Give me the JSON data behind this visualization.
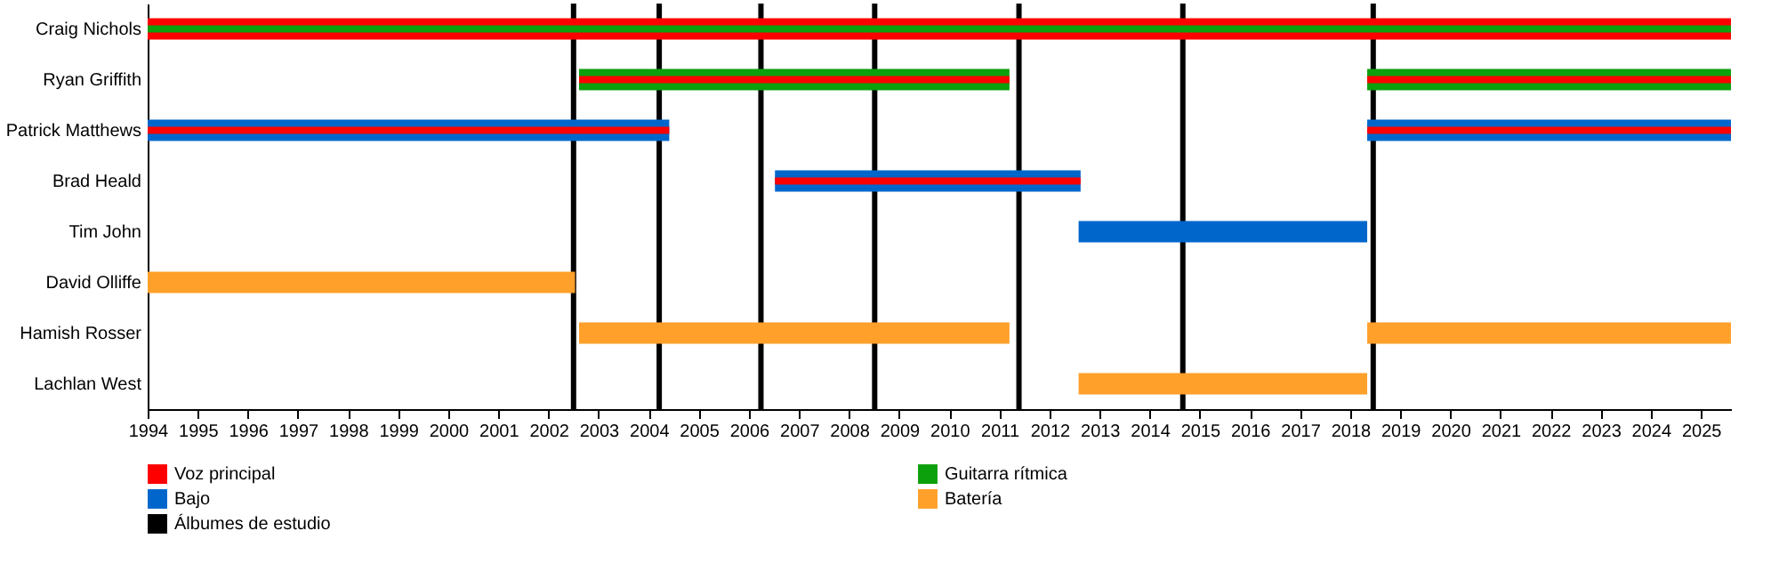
{
  "chart_data": {
    "type": "bar",
    "orientation": "horizontal",
    "categories": [
      "Craig Nichols",
      "Ryan Griffith",
      "Patrick Matthews",
      "Brad Heald",
      "Tim John",
      "David Olliffe",
      "Hamish Rosser",
      "Lachlan West"
    ],
    "series": [
      {
        "name": "Voz principal",
        "color": "#ff0000",
        "base": [
          1994,
          null,
          null,
          null,
          null,
          null,
          null,
          null
        ],
        "values": [
          31.6,
          null,
          null,
          null,
          null,
          null,
          null,
          null
        ]
      },
      {
        "name": "Guitarra rítmica",
        "color": "#0ca00c",
        "base": [
          null,
          2002.61,
          null,
          null,
          null,
          null,
          null,
          null
        ],
        "values": [
          null,
          8.59,
          null,
          null,
          null,
          null,
          null,
          null
        ]
      },
      {
        "color": "#0ca00c",
        "base": [
          null,
          2018.34,
          null,
          null,
          null,
          null,
          null,
          null
        ],
        "values": [
          null,
          7.26,
          null,
          null,
          null,
          null,
          null,
          null
        ]
      },
      {
        "name": "Bajo",
        "color": "#0066cc",
        "base": [
          null,
          null,
          1994,
          2006.52,
          2012.58,
          null,
          null,
          null
        ],
        "values": [
          null,
          null,
          10.41,
          6.1,
          5.76,
          null,
          null,
          null
        ]
      },
      {
        "color": "#0066cc",
        "base": [
          null,
          null,
          2018.34,
          null,
          null,
          null,
          null,
          null
        ],
        "values": [
          null,
          null,
          7.26,
          null,
          null,
          null,
          null,
          null
        ]
      },
      {
        "name": "Batería",
        "color": "#ffa02a",
        "base": [
          null,
          null,
          null,
          null,
          null,
          1994,
          2002.61,
          2012.58
        ],
        "values": [
          null,
          null,
          null,
          null,
          null,
          8.53,
          8.59,
          5.76
        ]
      },
      {
        "color": "#ffa02a",
        "base": [
          null,
          null,
          null,
          null,
          null,
          null,
          2018.34,
          null
        ],
        "values": [
          null,
          null,
          null,
          null,
          null,
          null,
          7.26,
          null
        ]
      },
      {
        "color": "#0ca00c",
        "base": [
          1994,
          null,
          null,
          null,
          null,
          null,
          null,
          null
        ],
        "values": [
          31.6,
          null,
          null,
          null,
          null,
          null,
          null,
          null
        ]
      },
      {
        "color": "#ff0000",
        "base": [
          null,
          2002.61,
          1994,
          2006.52,
          null,
          null,
          null,
          null
        ],
        "values": [
          null,
          8.59,
          10.41,
          6.1,
          null,
          null,
          null,
          null
        ]
      },
      {
        "color": "#ff0000",
        "base": [
          null,
          2018.34,
          2018.34,
          null,
          null,
          null,
          null,
          null
        ],
        "values": [
          null,
          7.26,
          7.26,
          null,
          null,
          null,
          null,
          null
        ]
      }
    ],
    "ref_lines": [
      {
        "axis": "x",
        "value": 2002.5,
        "label": "Álbumes de estudio",
        "color": "#000000"
      },
      {
        "axis": "x",
        "value": 2004.21,
        "color": "#000000"
      },
      {
        "axis": "x",
        "value": 2006.24,
        "color": "#000000"
      },
      {
        "axis": "x",
        "value": 2008.51,
        "color": "#000000"
      },
      {
        "axis": "x",
        "value": 2011.39,
        "color": "#000000"
      },
      {
        "axis": "x",
        "value": 2014.66,
        "color": "#000000"
      },
      {
        "axis": "x",
        "value": 2018.46,
        "color": "#000000"
      }
    ],
    "xlim": [
      1994,
      2025.6
    ],
    "xticks": [
      1994,
      1995,
      1996,
      1997,
      1998,
      1999,
      2000,
      2001,
      2002,
      2003,
      2004,
      2005,
      2006,
      2007,
      2008,
      2009,
      2010,
      2011,
      2012,
      2013,
      2014,
      2015,
      2016,
      2017,
      2018,
      2019,
      2020,
      2021,
      2022,
      2023,
      2024,
      2025
    ],
    "grid": false,
    "legend": "bottom"
  }
}
